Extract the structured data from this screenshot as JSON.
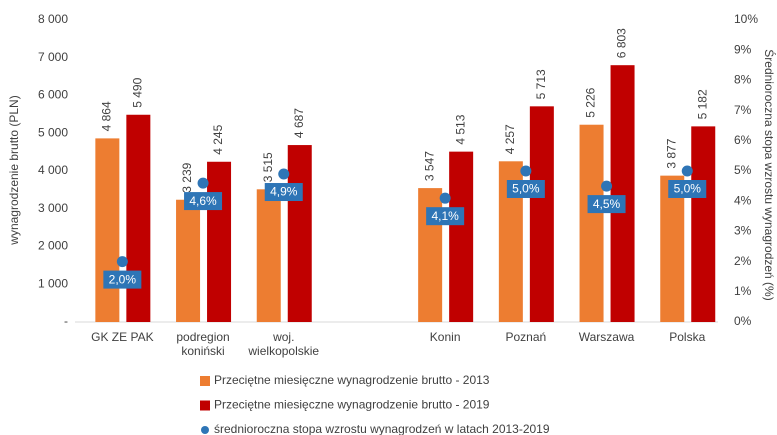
{
  "chart_data": {
    "type": "bar",
    "categories": [
      "GK ZE PAK",
      "podregion koniński",
      "woj. wielkopolskie",
      null,
      "Konin",
      "Poznań",
      "Warszawa",
      "Polska"
    ],
    "series": [
      {
        "name": "Przeciętne miesięczne wynagrodzenie brutto - 2013",
        "color": "#ed7d31",
        "values": [
          4864,
          3239,
          3515,
          null,
          3547,
          4257,
          5226,
          3877
        ],
        "value_labels": [
          "4 864",
          "3 239",
          "3 515",
          null,
          "3 547",
          "4 257",
          "5 226",
          "3 877"
        ]
      },
      {
        "name": "Przeciętne miesięczne wynagrodzenie brutto - 2019",
        "color": "#c00000",
        "values": [
          5490,
          4245,
          4687,
          null,
          4513,
          5713,
          6803,
          5182
        ],
        "value_labels": [
          "5 490",
          "4 245",
          "4 687",
          null,
          "4 513",
          "5 713",
          "6 803",
          "5 182"
        ]
      },
      {
        "name": "średnioroczna stopa wzrostu wynagrodzeń w latach 2013-2019",
        "color": "#2e75b6",
        "axis": "y2",
        "style": "point",
        "values": [
          2.0,
          4.6,
          4.9,
          null,
          4.1,
          5.0,
          4.5,
          5.0
        ],
        "value_labels": [
          "2,0%",
          "4,6%",
          "4,9%",
          null,
          "4,1%",
          "5,0%",
          "4,5%",
          "5,0%"
        ]
      }
    ],
    "y_label": "wynagrodzenie brutto (PLN)",
    "y2_label": "Średnioroczna stopa wzrostu wynagrodzeń (%)",
    "ylim": [
      0,
      8000
    ],
    "yticks": [
      {
        "value": 0,
        "label": "-"
      },
      {
        "value": 1000,
        "label": "1 000"
      },
      {
        "value": 2000,
        "label": "2 000"
      },
      {
        "value": 3000,
        "label": "3 000"
      },
      {
        "value": 4000,
        "label": "4 000"
      },
      {
        "value": 5000,
        "label": "5 000"
      },
      {
        "value": 6000,
        "label": "6 000"
      },
      {
        "value": 7000,
        "label": "7 000"
      },
      {
        "value": 8000,
        "label": "8 000"
      }
    ],
    "y2lim": [
      0,
      10
    ],
    "y2ticks": [
      {
        "value": 0,
        "label": "0%"
      },
      {
        "value": 1,
        "label": "1%"
      },
      {
        "value": 2,
        "label": "2%"
      },
      {
        "value": 3,
        "label": "3%"
      },
      {
        "value": 4,
        "label": "4%"
      },
      {
        "value": 5,
        "label": "5%"
      },
      {
        "value": 6,
        "label": "6%"
      },
      {
        "value": 7,
        "label": "7%"
      },
      {
        "value": 8,
        "label": "8%"
      },
      {
        "value": 9,
        "label": "9%"
      },
      {
        "value": 10,
        "label": "10%"
      }
    ],
    "grid": false,
    "legend": "bottom"
  }
}
